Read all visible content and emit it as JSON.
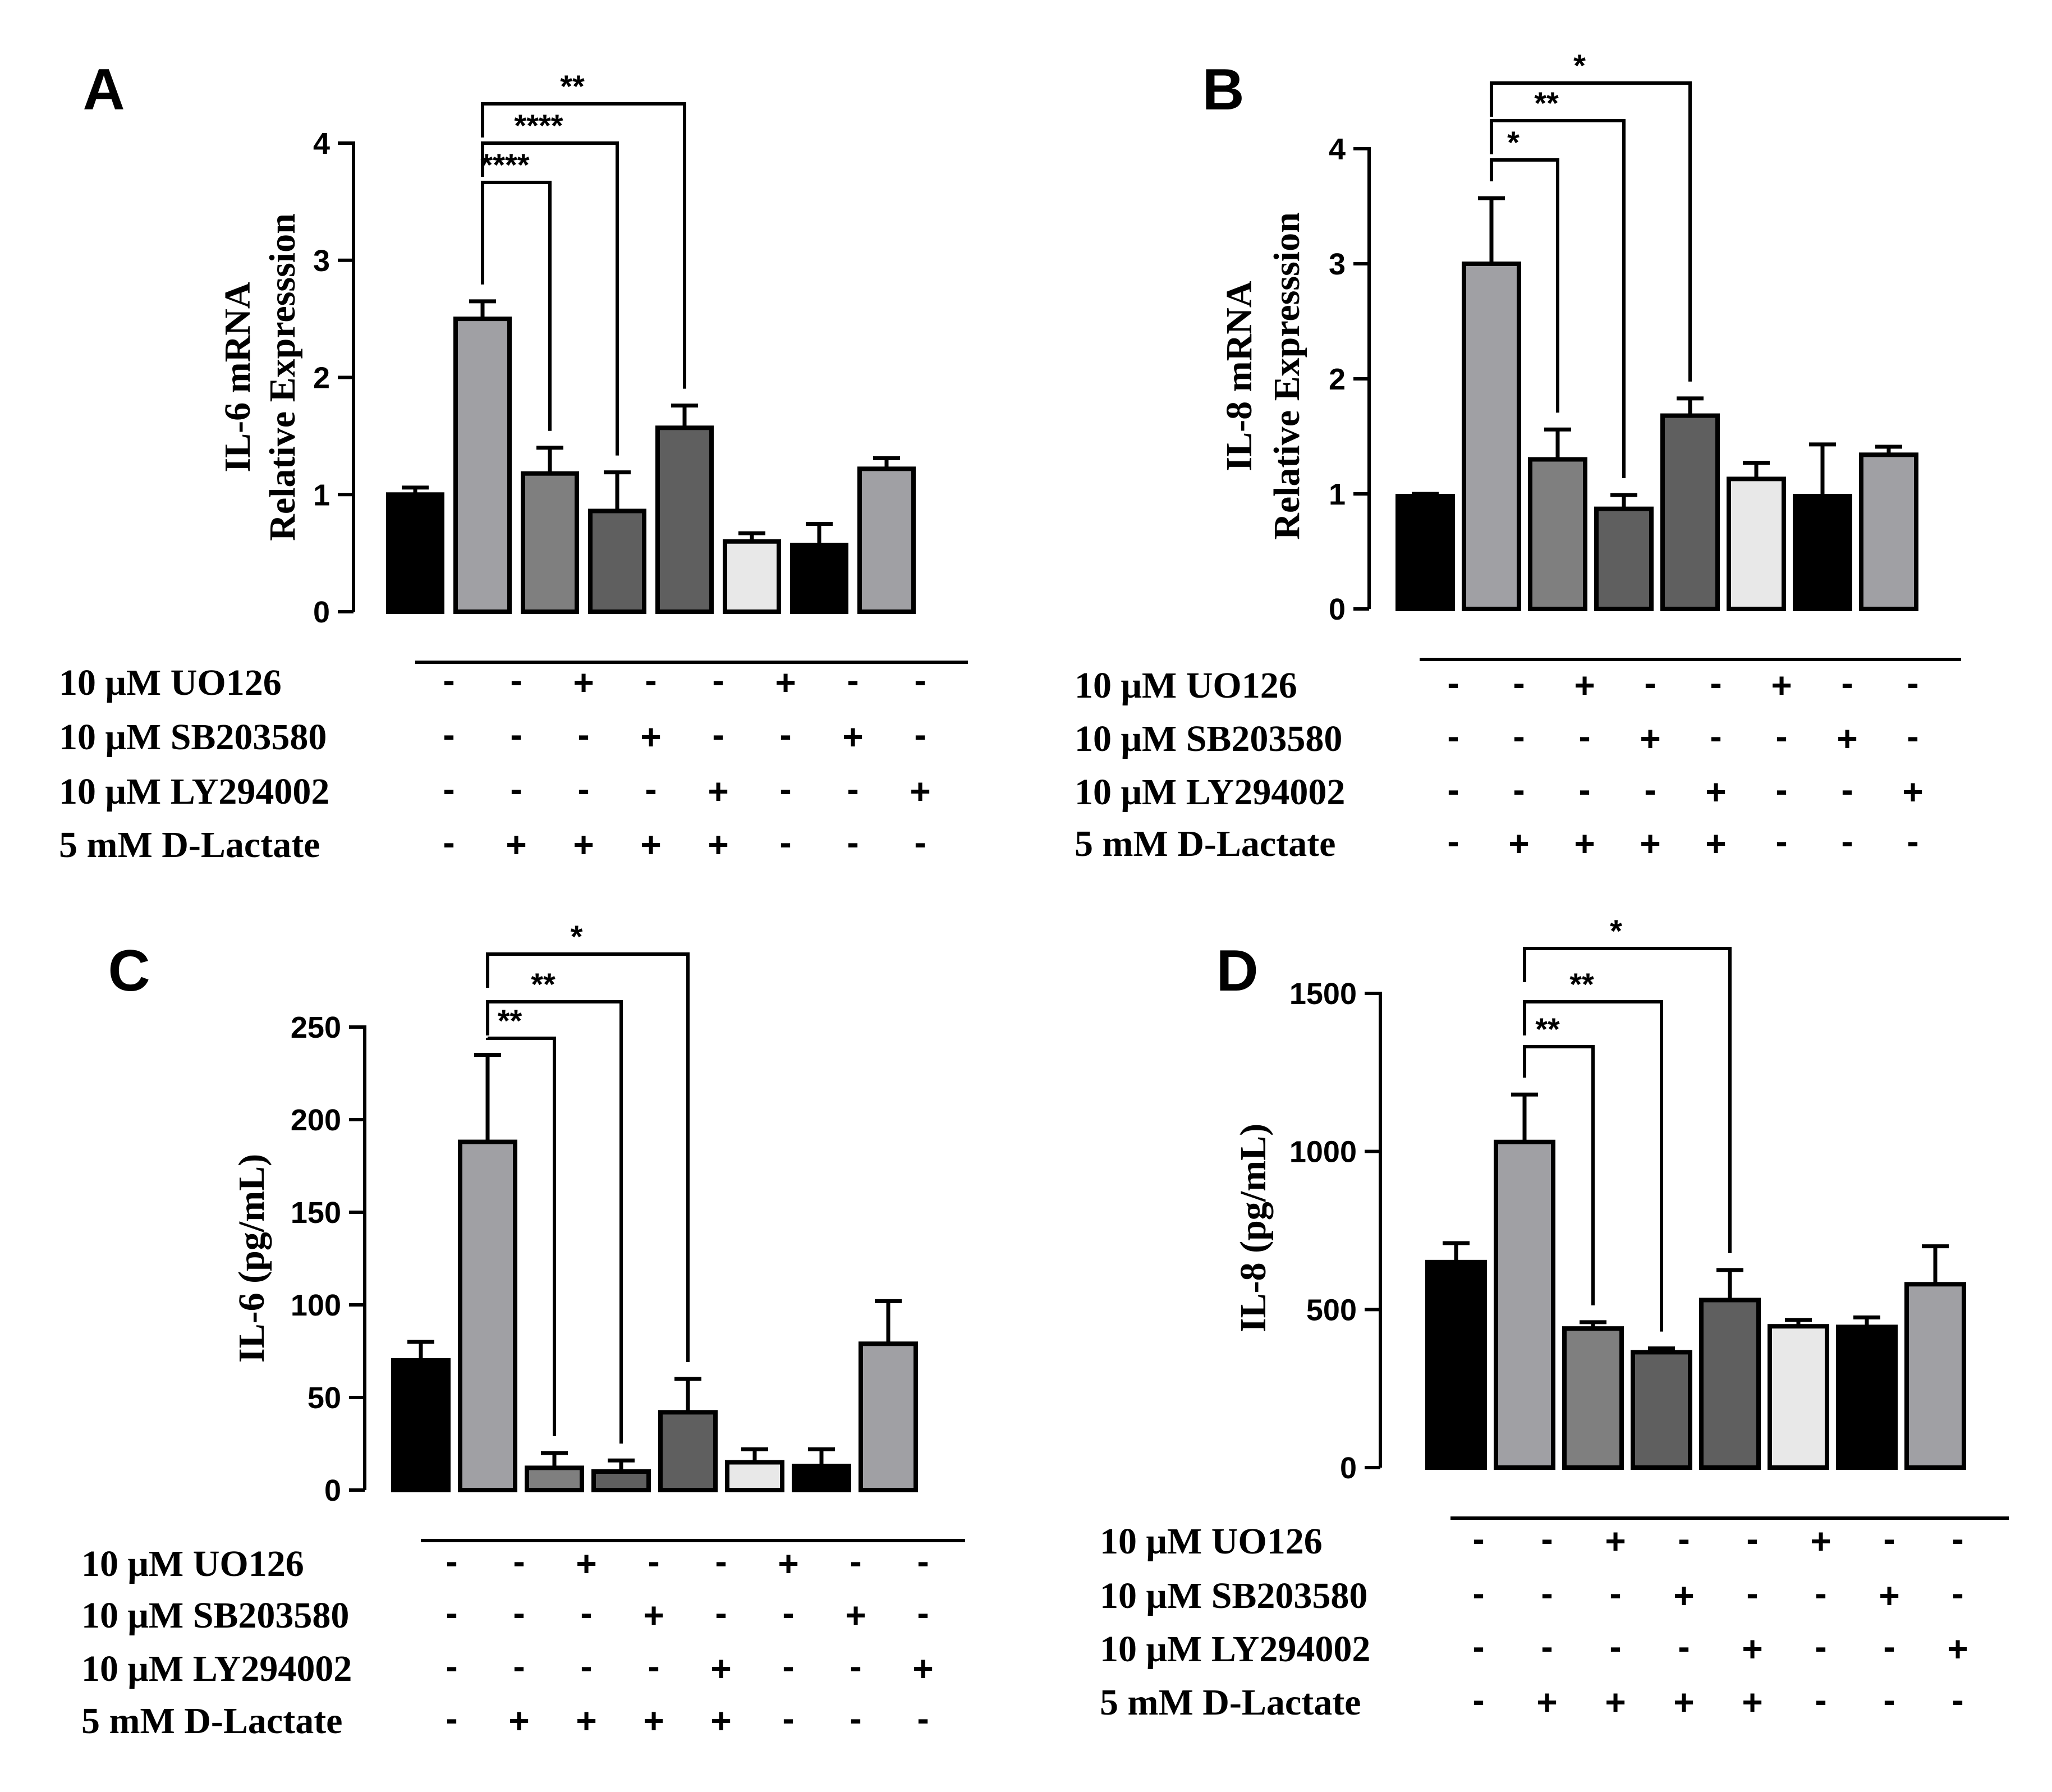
{
  "colors": {
    "black": "#000000",
    "gray": "#a0a0a4",
    "mid_gray": "#7f7f7f",
    "dark_gray": "#5f5f5f",
    "light": "#e8e8e8"
  },
  "conditions": {
    "labels": [
      "10 μM UO126",
      "10 μM SB203580",
      "10 μM LY294002",
      "5 mM D-Lactate"
    ],
    "signs": [
      [
        "-",
        "-",
        "+",
        "-",
        "-",
        "+",
        "-",
        "-"
      ],
      [
        "-",
        "-",
        "-",
        "+",
        "-",
        "-",
        "+",
        "-"
      ],
      [
        "-",
        "-",
        "-",
        "-",
        "+",
        "-",
        "-",
        "+"
      ],
      [
        "-",
        "+",
        "+",
        "+",
        "+",
        "-",
        "-",
        "-"
      ]
    ]
  },
  "chart_data": [
    {
      "panel": "A",
      "type": "bar",
      "ylabel": [
        "IL-6 mRNA",
        "Relative Expresssion"
      ],
      "ylim": [
        0,
        4
      ],
      "yticks": [
        "0",
        "1",
        "2",
        "3",
        "4"
      ],
      "values": [
        1.0,
        2.5,
        1.18,
        0.86,
        1.57,
        0.6,
        0.57,
        1.22
      ],
      "errors": [
        0.06,
        0.15,
        0.22,
        0.33,
        0.19,
        0.07,
        0.18,
        0.09
      ],
      "bar_colors": [
        "black",
        "gray",
        "mid_gray",
        "dark_gray",
        "dark_gray",
        "light",
        "black",
        "gray"
      ],
      "significance": [
        {
          "from": 1,
          "to": 2,
          "label": "****"
        },
        {
          "from": 1,
          "to": 3,
          "label": "****"
        },
        {
          "from": 1,
          "to": 4,
          "label": "**"
        }
      ]
    },
    {
      "panel": "B",
      "type": "bar",
      "ylabel": [
        "IL-8 mRNA",
        "Relative Expresssion"
      ],
      "ylim": [
        0,
        4
      ],
      "yticks": [
        "0",
        "1",
        "2",
        "3",
        "4"
      ],
      "values": [
        0.98,
        3.0,
        1.3,
        0.87,
        1.68,
        1.13,
        0.98,
        1.34
      ],
      "errors": [
        0.02,
        0.57,
        0.26,
        0.12,
        0.15,
        0.14,
        0.45,
        0.07
      ],
      "bar_colors": [
        "black",
        "gray",
        "mid_gray",
        "dark_gray",
        "dark_gray",
        "light",
        "black",
        "gray"
      ],
      "significance": [
        {
          "from": 1,
          "to": 2,
          "label": "*"
        },
        {
          "from": 1,
          "to": 3,
          "label": "**"
        },
        {
          "from": 1,
          "to": 4,
          "label": "*"
        }
      ]
    },
    {
      "panel": "C",
      "type": "bar",
      "ylabel": [
        "IL-6 (pg/mL)"
      ],
      "ylim": [
        0,
        250
      ],
      "yticks": [
        "0",
        "50",
        "100",
        "150",
        "200",
        "250"
      ],
      "values": [
        70,
        188,
        12,
        10,
        42,
        15,
        13,
        79
      ],
      "errors": [
        10,
        47,
        8,
        6,
        18,
        7,
        9,
        23
      ],
      "bar_colors": [
        "black",
        "gray",
        "mid_gray",
        "dark_gray",
        "dark_gray",
        "light",
        "black",
        "gray"
      ],
      "significance": [
        {
          "from": 1,
          "to": 2,
          "label": "**"
        },
        {
          "from": 1,
          "to": 3,
          "label": "**"
        },
        {
          "from": 1,
          "to": 4,
          "label": "*"
        }
      ]
    },
    {
      "panel": "D",
      "type": "bar",
      "ylabel": [
        "IL-8 (pg/mL)"
      ],
      "ylim": [
        0,
        1500
      ],
      "yticks": [
        "0",
        "500",
        "1000",
        "1500"
      ],
      "values": [
        650,
        1030,
        440,
        365,
        530,
        447,
        445,
        580
      ],
      "errors": [
        60,
        150,
        20,
        12,
        95,
        20,
        30,
        120
      ],
      "bar_colors": [
        "black",
        "gray",
        "mid_gray",
        "dark_gray",
        "dark_gray",
        "light",
        "black",
        "gray"
      ],
      "significance": [
        {
          "from": 1,
          "to": 2,
          "label": "**"
        },
        {
          "from": 1,
          "to": 3,
          "label": "**"
        },
        {
          "from": 1,
          "to": 4,
          "label": "*"
        }
      ]
    }
  ]
}
